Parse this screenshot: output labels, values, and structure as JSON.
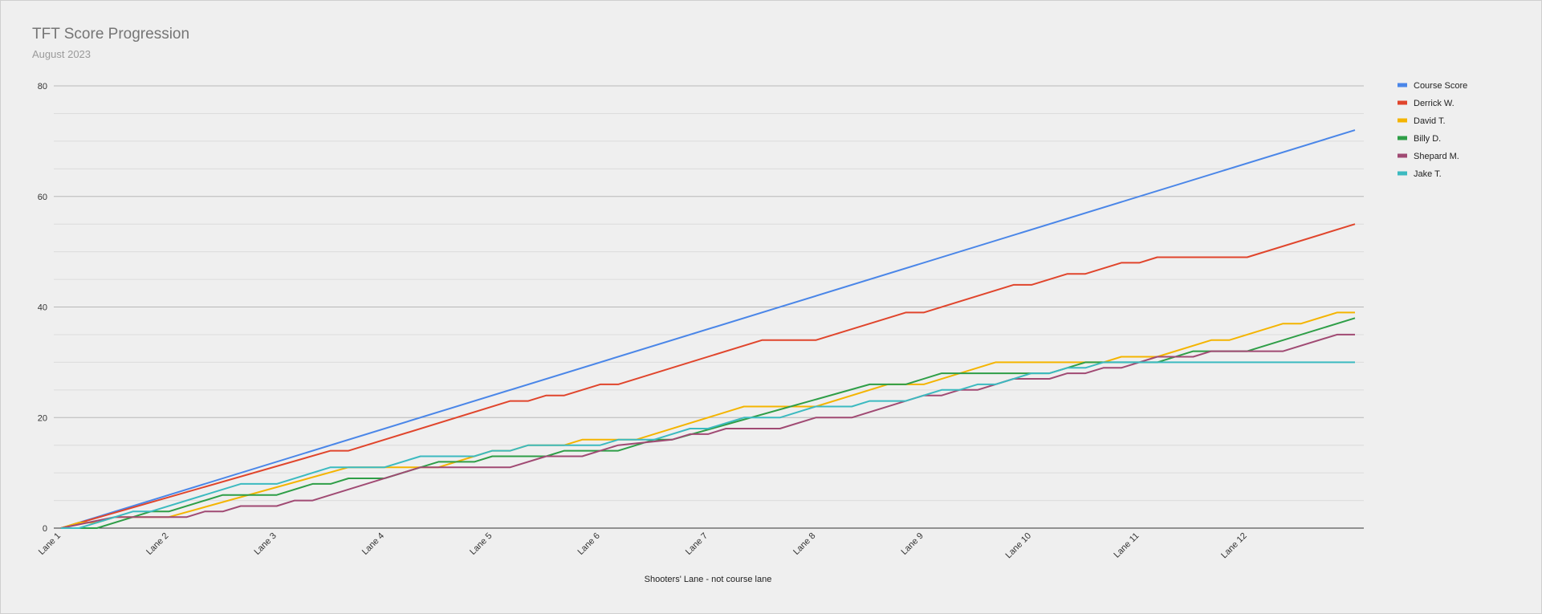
{
  "chart_data": {
    "type": "line",
    "title": "TFT Score Progression",
    "subtitle": "August 2023",
    "xlabel": "Shooters' Lane - not course lane",
    "ylabel": "",
    "ylim": [
      0,
      80
    ],
    "yticks": [
      0,
      20,
      40,
      60,
      80
    ],
    "minor_grid_step": 5,
    "grid": true,
    "legend_position": "right",
    "categories": [
      "Lane 1",
      "Lane 2",
      "Lane 3",
      "Lane 4",
      "Lane 5",
      "Lane 6",
      "Lane 7",
      "Lane 8",
      "Lane 9",
      "Lane 10",
      "Lane 11",
      "Lane 12"
    ],
    "x_points_per_lane": 6,
    "x_total_points": 72,
    "series": [
      {
        "name": "Course Score",
        "color": "#4a86e8",
        "points": [
          [
            0,
            0
          ],
          [
            72,
            72
          ]
        ]
      },
      {
        "name": "Derrick W.",
        "color": "#e0452c",
        "points": [
          [
            0,
            0
          ],
          [
            15,
            14
          ],
          [
            16,
            14
          ],
          [
            25,
            23
          ],
          [
            26,
            23
          ],
          [
            27,
            24
          ],
          [
            28,
            24
          ],
          [
            30,
            26
          ],
          [
            31,
            26
          ],
          [
            39,
            34
          ],
          [
            42,
            34
          ],
          [
            47,
            39
          ],
          [
            48,
            39
          ],
          [
            53,
            44
          ],
          [
            54,
            44
          ],
          [
            56,
            46
          ],
          [
            57,
            46
          ],
          [
            59,
            48
          ],
          [
            60,
            48
          ],
          [
            61,
            49
          ],
          [
            66,
            49
          ],
          [
            72,
            55
          ]
        ]
      },
      {
        "name": "David T.",
        "color": "#f4b400",
        "points": [
          [
            0,
            0
          ],
          [
            1,
            1
          ],
          [
            2,
            1
          ],
          [
            3,
            2
          ],
          [
            6,
            2
          ],
          [
            16,
            11
          ],
          [
            21,
            11
          ],
          [
            23,
            13
          ],
          [
            24,
            14
          ],
          [
            25,
            14
          ],
          [
            26,
            15
          ],
          [
            28,
            15
          ],
          [
            29,
            16
          ],
          [
            32,
            16
          ],
          [
            38,
            22
          ],
          [
            42,
            22
          ],
          [
            46,
            26
          ],
          [
            48,
            26
          ],
          [
            52,
            30
          ],
          [
            58,
            30
          ],
          [
            59,
            31
          ],
          [
            61,
            31
          ],
          [
            64,
            34
          ],
          [
            65,
            34
          ],
          [
            68,
            37
          ],
          [
            69,
            37
          ],
          [
            71,
            39
          ],
          [
            72,
            39
          ]
        ]
      },
      {
        "name": "Billy D.",
        "color": "#2e9e47",
        "points": [
          [
            0,
            0
          ],
          [
            2,
            0
          ],
          [
            5,
            3
          ],
          [
            6,
            3
          ],
          [
            9,
            6
          ],
          [
            12,
            6
          ],
          [
            14,
            8
          ],
          [
            15,
            8
          ],
          [
            16,
            9
          ],
          [
            18,
            9
          ],
          [
            21,
            12
          ],
          [
            23,
            12
          ],
          [
            24,
            13
          ],
          [
            27,
            13
          ],
          [
            28,
            14
          ],
          [
            31,
            14
          ],
          [
            33,
            16
          ],
          [
            34,
            16
          ],
          [
            45,
            26
          ],
          [
            47,
            26
          ],
          [
            49,
            28
          ],
          [
            55,
            28
          ],
          [
            57,
            30
          ],
          [
            61,
            30
          ],
          [
            63,
            32
          ],
          [
            66,
            32
          ],
          [
            72,
            38
          ]
        ]
      },
      {
        "name": "Shepard M.",
        "color": "#a04a73",
        "points": [
          [
            0,
            0
          ],
          [
            3,
            2
          ],
          [
            7,
            2
          ],
          [
            8,
            3
          ],
          [
            9,
            3
          ],
          [
            10,
            4
          ],
          [
            12,
            4
          ],
          [
            13,
            5
          ],
          [
            14,
            5
          ],
          [
            20,
            11
          ],
          [
            25,
            11
          ],
          [
            27,
            13
          ],
          [
            29,
            13
          ],
          [
            31,
            15
          ],
          [
            34,
            16
          ],
          [
            35,
            17
          ],
          [
            36,
            17
          ],
          [
            37,
            18
          ],
          [
            40,
            18
          ],
          [
            42,
            20
          ],
          [
            44,
            20
          ],
          [
            48,
            24
          ],
          [
            49,
            24
          ],
          [
            50,
            25
          ],
          [
            51,
            25
          ],
          [
            53,
            27
          ],
          [
            55,
            27
          ],
          [
            56,
            28
          ],
          [
            57,
            28
          ],
          [
            58,
            29
          ],
          [
            59,
            29
          ],
          [
            61,
            31
          ],
          [
            63,
            31
          ],
          [
            64,
            32
          ],
          [
            68,
            32
          ],
          [
            71,
            35
          ],
          [
            72,
            35
          ]
        ]
      },
      {
        "name": "Jake T.",
        "color": "#3cbac0",
        "points": [
          [
            0,
            0
          ],
          [
            1,
            0
          ],
          [
            4,
            3
          ],
          [
            5,
            3
          ],
          [
            10,
            8
          ],
          [
            12,
            8
          ],
          [
            15,
            11
          ],
          [
            18,
            11
          ],
          [
            20,
            13
          ],
          [
            23,
            13
          ],
          [
            24,
            14
          ],
          [
            25,
            14
          ],
          [
            26,
            15
          ],
          [
            30,
            15
          ],
          [
            31,
            16
          ],
          [
            33,
            16
          ],
          [
            35,
            18
          ],
          [
            36,
            18
          ],
          [
            38,
            20
          ],
          [
            40,
            20
          ],
          [
            42,
            22
          ],
          [
            44,
            22
          ],
          [
            45,
            23
          ],
          [
            47,
            23
          ],
          [
            49,
            25
          ],
          [
            50,
            25
          ],
          [
            51,
            26
          ],
          [
            52,
            26
          ],
          [
            54,
            28
          ],
          [
            55,
            28
          ],
          [
            56,
            29
          ],
          [
            57,
            29
          ],
          [
            58,
            30
          ],
          [
            72,
            30
          ]
        ]
      }
    ]
  }
}
